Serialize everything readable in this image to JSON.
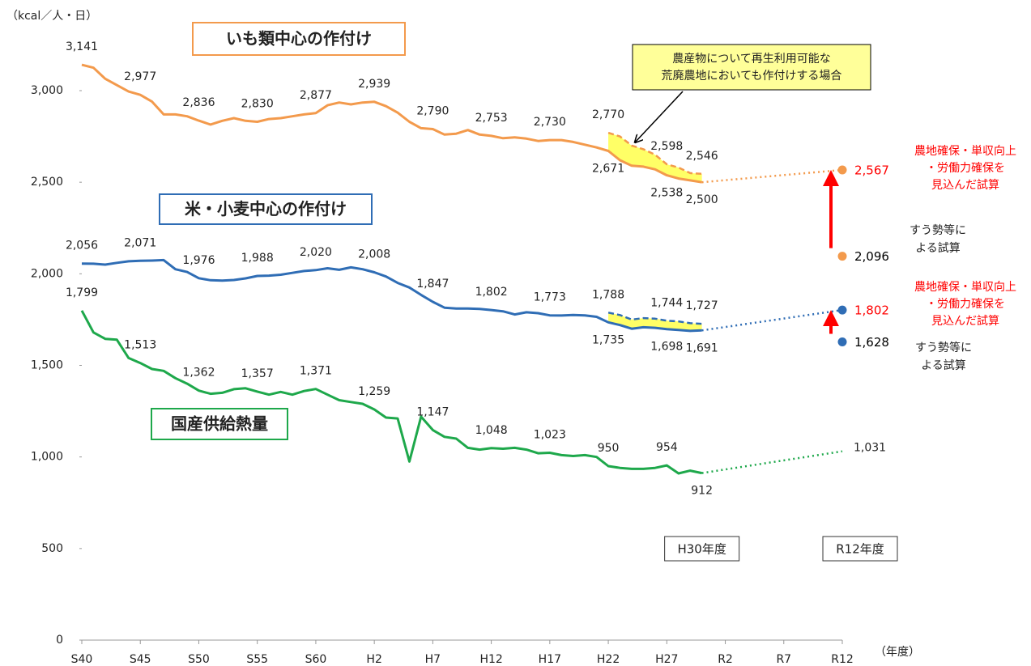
{
  "chart_data": {
    "type": "line",
    "y_unit_label": "（kcal／人・日）",
    "x_unit_label": "（年度）",
    "xlim": [
      1965,
      2030
    ],
    "ylim": [
      0,
      3000
    ],
    "xticks": [
      {
        "value": 1965,
        "label": "S40"
      },
      {
        "value": 1970,
        "label": "S45"
      },
      {
        "value": 1975,
        "label": "S50"
      },
      {
        "value": 1980,
        "label": "S55"
      },
      {
        "value": 1985,
        "label": "S60"
      },
      {
        "value": 1990,
        "label": "H2"
      },
      {
        "value": 1995,
        "label": "H7"
      },
      {
        "value": 2000,
        "label": "H12"
      },
      {
        "value": 2005,
        "label": "H17"
      },
      {
        "value": 2010,
        "label": "H22"
      },
      {
        "value": 2015,
        "label": "H27"
      },
      {
        "value": 2020,
        "label": "R2"
      },
      {
        "value": 2025,
        "label": "R7"
      },
      {
        "value": 2030,
        "label": "R12"
      }
    ],
    "yticks": [
      0,
      500,
      {
        "value": 1000,
        "label": "1,000"
      },
      {
        "value": 1500,
        "label": "1,500"
      },
      {
        "value": 2000,
        "label": "2,000"
      },
      {
        "value": 2500,
        "label": "2,500"
      },
      {
        "value": 3000,
        "label": "3,000"
      }
    ],
    "grid": false,
    "series": [
      {
        "name": "いも類中心の作付け",
        "color": "#f39a4c",
        "style": "solid",
        "x": [
          1965,
          1966,
          1967,
          1968,
          1969,
          1970,
          1971,
          1972,
          1973,
          1974,
          1975,
          1976,
          1977,
          1978,
          1979,
          1980,
          1981,
          1982,
          1983,
          1984,
          1985,
          1986,
          1987,
          1988,
          1989,
          1990,
          1991,
          1992,
          1993,
          1994,
          1995,
          1996,
          1997,
          1998,
          1999,
          2000,
          2001,
          2002,
          2003,
          2004,
          2005,
          2006,
          2007,
          2008,
          2009,
          2010,
          2011,
          2012,
          2013,
          2014,
          2015,
          2016,
          2017,
          2018
        ],
        "values": [
          3141,
          3125,
          3065,
          3030,
          2995,
          2977,
          2940,
          2870,
          2870,
          2860,
          2836,
          2815,
          2835,
          2850,
          2835,
          2830,
          2845,
          2850,
          2860,
          2870,
          2877,
          2920,
          2935,
          2925,
          2935,
          2939,
          2915,
          2880,
          2830,
          2795,
          2790,
          2760,
          2765,
          2785,
          2760,
          2753,
          2740,
          2745,
          2738,
          2725,
          2730,
          2730,
          2720,
          2705,
          2690,
          2671,
          2620,
          2590,
          2585,
          2570,
          2538,
          2520,
          2510,
          2500
        ],
        "value_labels": [
          "3,141",
          null,
          null,
          null,
          null,
          "2,977",
          null,
          null,
          null,
          null,
          "2,836",
          null,
          null,
          null,
          null,
          "2,830",
          null,
          null,
          null,
          null,
          "2,877",
          null,
          null,
          null,
          null,
          "2,939",
          null,
          null,
          null,
          null,
          "2,790",
          null,
          null,
          null,
          null,
          "2,753",
          null,
          null,
          null,
          null,
          "2,730",
          null,
          null,
          null,
          null,
          "2,671",
          null,
          null,
          null,
          null,
          "2,538",
          null,
          null,
          "2,500"
        ]
      },
      {
        "color": "#f39a4c",
        "style": "dashed",
        "x": [
          2010,
          2011,
          2012,
          2013,
          2014,
          2015,
          2016,
          2017,
          2018
        ],
        "values": [
          2770,
          2750,
          2700,
          2680,
          2650,
          2598,
          2580,
          2550,
          2546
        ],
        "value_labels": [
          "2,770",
          null,
          null,
          null,
          null,
          "2,598",
          null,
          null,
          "2,546"
        ]
      },
      {
        "color": "#f39a4c",
        "style": "dotted",
        "x": [
          2018,
          2030
        ],
        "values": [
          2500,
          2567
        ]
      },
      {
        "name": "米・小麦中心の作付け",
        "color": "#2f6db5",
        "style": "solid",
        "x": [
          1965,
          1966,
          1967,
          1968,
          1969,
          1970,
          1971,
          1972,
          1973,
          1974,
          1975,
          1976,
          1977,
          1978,
          1979,
          1980,
          1981,
          1982,
          1983,
          1984,
          1985,
          1986,
          1987,
          1988,
          1989,
          1990,
          1991,
          1992,
          1993,
          1994,
          1995,
          1996,
          1997,
          1998,
          1999,
          2000,
          2001,
          2002,
          2003,
          2004,
          2005,
          2006,
          2007,
          2008,
          2009,
          2010,
          2011,
          2012,
          2013,
          2014,
          2015,
          2016,
          2017,
          2018
        ],
        "values": [
          2056,
          2055,
          2050,
          2060,
          2068,
          2071,
          2072,
          2075,
          2025,
          2010,
          1976,
          1965,
          1963,
          1966,
          1975,
          1988,
          1990,
          1995,
          2005,
          2015,
          2020,
          2030,
          2022,
          2035,
          2025,
          2008,
          1985,
          1950,
          1925,
          1885,
          1847,
          1815,
          1810,
          1810,
          1808,
          1802,
          1795,
          1778,
          1790,
          1785,
          1773,
          1772,
          1775,
          1773,
          1765,
          1735,
          1720,
          1700,
          1708,
          1705,
          1698,
          1693,
          1688,
          1691
        ],
        "value_labels": [
          "2,056",
          null,
          null,
          null,
          null,
          "2,071",
          null,
          null,
          null,
          null,
          "1,976",
          null,
          null,
          null,
          null,
          "1,988",
          null,
          null,
          null,
          null,
          "2,020",
          null,
          null,
          null,
          null,
          "2,008",
          null,
          null,
          null,
          null,
          "1,847",
          null,
          null,
          null,
          null,
          "1,802",
          null,
          null,
          null,
          null,
          "1,773",
          null,
          null,
          null,
          null,
          "1,735",
          null,
          null,
          null,
          null,
          "1,698",
          null,
          null,
          "1,691"
        ]
      },
      {
        "color": "#2f6db5",
        "style": "dashed",
        "x": [
          2010,
          2011,
          2012,
          2013,
          2014,
          2015,
          2016,
          2017,
          2018
        ],
        "values": [
          1788,
          1775,
          1750,
          1758,
          1755,
          1744,
          1740,
          1730,
          1727
        ],
        "value_labels": [
          "1,788",
          null,
          null,
          null,
          null,
          "1,744",
          null,
          null,
          "1,727"
        ]
      },
      {
        "color": "#2f6db5",
        "style": "dotted",
        "x": [
          2018,
          2030
        ],
        "values": [
          1691,
          1802
        ]
      },
      {
        "name": "国産供給熱量",
        "color": "#1ea84b",
        "style": "solid",
        "x": [
          1965,
          1966,
          1967,
          1968,
          1969,
          1970,
          1971,
          1972,
          1973,
          1974,
          1975,
          1976,
          1977,
          1978,
          1979,
          1980,
          1981,
          1982,
          1983,
          1984,
          1985,
          1986,
          1987,
          1988,
          1989,
          1990,
          1991,
          1992,
          1993,
          1994,
          1995,
          1996,
          1997,
          1998,
          1999,
          2000,
          2001,
          2002,
          2003,
          2004,
          2005,
          2006,
          2007,
          2008,
          2009,
          2010,
          2011,
          2012,
          2013,
          2014,
          2015,
          2016,
          2017,
          2018
        ],
        "values": [
          1799,
          1680,
          1645,
          1640,
          1540,
          1513,
          1480,
          1470,
          1430,
          1400,
          1362,
          1345,
          1350,
          1370,
          1375,
          1357,
          1340,
          1355,
          1340,
          1360,
          1371,
          1340,
          1310,
          1300,
          1290,
          1259,
          1215,
          1210,
          975,
          1220,
          1147,
          1110,
          1100,
          1050,
          1040,
          1048,
          1045,
          1050,
          1040,
          1020,
          1023,
          1010,
          1005,
          1010,
          1000,
          950,
          940,
          935,
          935,
          940,
          954,
          910,
          925,
          912
        ],
        "value_labels": [
          "1,799",
          null,
          null,
          null,
          null,
          "1,513",
          null,
          null,
          null,
          null,
          "1,362",
          null,
          null,
          null,
          null,
          "1,357",
          null,
          null,
          null,
          null,
          "1,371",
          null,
          null,
          null,
          null,
          "1,259",
          null,
          null,
          null,
          null,
          "1,147",
          null,
          null,
          null,
          null,
          "1,048",
          null,
          null,
          null,
          null,
          "1,023",
          null,
          null,
          null,
          null,
          "950",
          null,
          null,
          null,
          null,
          "954",
          null,
          null,
          "912"
        ]
      },
      {
        "color": "#1ea84b",
        "style": "dotted",
        "x": [
          2018,
          2030
        ],
        "values": [
          912,
          1031
        ],
        "value_labels": [
          null,
          "1,031"
        ]
      }
    ],
    "points": [
      {
        "x": 2030,
        "value": 2567,
        "value_label": "2,567",
        "color": "#f39a4c",
        "label_color": "#ff0000"
      },
      {
        "x": 2030,
        "value": 2096,
        "value_label": "2,096",
        "color": "#f39a4c",
        "label_color": "#000000"
      },
      {
        "x": 2030,
        "value": 1802,
        "value_label": "1,802",
        "color": "#2f6db5",
        "label_color": "#ff0000"
      },
      {
        "x": 2030,
        "value": 1628,
        "value_label": "1,628",
        "color": "#2f6db5",
        "label_color": "#000000"
      }
    ],
    "annotations": {
      "callout": [
        "農産物について再生利用可能な",
        "荒廃農地においても作付けする場合"
      ],
      "scenario_high": [
        "農地確保・単収向上",
        "・労働力確保を",
        "見込んだ試算"
      ],
      "scenario_trend": [
        "すう勢等に",
        "よる試算"
      ],
      "period_labels": [
        "H30年度",
        "R12年度"
      ]
    }
  }
}
